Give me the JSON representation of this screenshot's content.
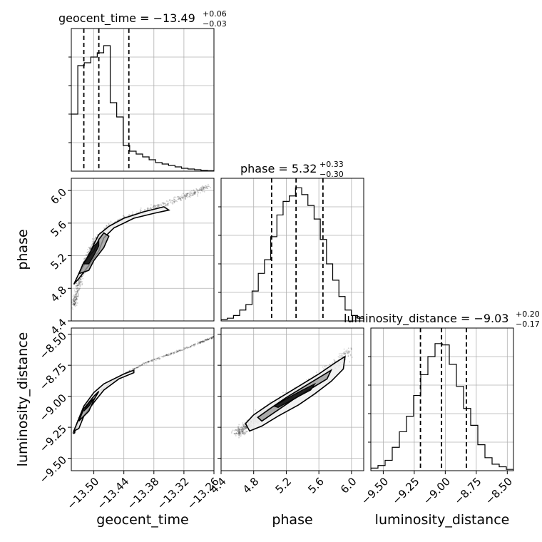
{
  "chart_data": {
    "type": "corner",
    "parameters": [
      "geocent_time",
      "phase",
      "luminosity_distance"
    ],
    "titles": [
      {
        "param": "geocent_time",
        "text": "geocent_time = −13.49",
        "plus": "+0.06",
        "minus": "−0.03"
      },
      {
        "param": "phase",
        "text": "phase = 5.32",
        "plus": "+0.33",
        "minus": "−0.30"
      },
      {
        "param": "luminosity_distance",
        "text": "luminosity_distance = −9.03",
        "plus": "+0.20",
        "minus": "−0.17"
      }
    ],
    "axes": {
      "geocent_time": {
        "range": [
          -13.545,
          -13.26
        ],
        "ticks": [
          -13.5,
          -13.44,
          -13.38,
          -13.32,
          -13.26
        ],
        "tick_labels": [
          "−13.50",
          "−13.44",
          "−13.38",
          "−13.32",
          "−13.26"
        ],
        "label": "geocent_time"
      },
      "phase": {
        "range": [
          4.4,
          6.15
        ],
        "ticks": [
          4.4,
          4.8,
          5.2,
          5.6,
          6.0
        ],
        "tick_labels_x": [
          "4.4",
          "4.8",
          "5.2",
          "5.6",
          "6.0"
        ],
        "tick_labels_y": [
          "4.4",
          "4.8",
          "5.2",
          "5.6",
          "6.0"
        ],
        "label": "phase"
      },
      "luminosity_distance": {
        "range": [
          -9.6,
          -8.45
        ],
        "ticks": [
          -9.5,
          -9.25,
          -9.0,
          -8.75,
          -8.5
        ],
        "tick_labels": [
          "−9.50",
          "−9.25",
          "−9.00",
          "−8.75",
          "−8.50"
        ],
        "label": "luminosity_distance"
      }
    },
    "quantiles": {
      "geocent_time": [
        -13.52,
        -13.49,
        -13.43
      ],
      "phase": [
        5.02,
        5.32,
        5.65
      ],
      "luminosity_distance": [
        -9.2,
        -9.03,
        -8.83
      ]
    },
    "histograms": {
      "geocent_time": {
        "edges_range": [
          -13.545,
          -13.26
        ],
        "counts": [
          0.4,
          0.74,
          0.76,
          0.8,
          0.83,
          0.88,
          0.48,
          0.38,
          0.18,
          0.14,
          0.12,
          0.1,
          0.08,
          0.06,
          0.05,
          0.04,
          0.03,
          0.02,
          0.015,
          0.01,
          0.005,
          0.003
        ],
        "ymax": 1.0
      },
      "phase": {
        "edges_range": [
          4.4,
          6.15
        ],
        "counts": [
          0.01,
          0.02,
          0.04,
          0.08,
          0.12,
          0.22,
          0.35,
          0.45,
          0.62,
          0.78,
          0.88,
          0.92,
          0.98,
          0.93,
          0.85,
          0.75,
          0.6,
          0.42,
          0.3,
          0.18,
          0.08,
          0.04,
          0.02
        ],
        "ymax": 1.05
      },
      "luminosity_distance": {
        "edges_range": [
          -9.6,
          -8.45
        ],
        "counts": [
          0.02,
          0.04,
          0.08,
          0.18,
          0.3,
          0.42,
          0.58,
          0.74,
          0.88,
          0.98,
          0.97,
          0.82,
          0.65,
          0.48,
          0.35,
          0.2,
          0.1,
          0.05,
          0.03,
          0.01
        ],
        "ymax": 1.1
      }
    },
    "pairs": [
      {
        "x": "geocent_time",
        "y": "phase",
        "contour_outer": [
          [
            -13.54,
            4.85
          ],
          [
            -13.53,
            4.98
          ],
          [
            -13.52,
            5.08
          ],
          [
            -13.51,
            5.2
          ],
          [
            -13.5,
            5.34
          ],
          [
            -13.49,
            5.46
          ],
          [
            -13.47,
            5.56
          ],
          [
            -13.44,
            5.66
          ],
          [
            -13.4,
            5.74
          ],
          [
            -13.36,
            5.8
          ],
          [
            -13.35,
            5.76
          ],
          [
            -13.38,
            5.72
          ],
          [
            -13.42,
            5.66
          ],
          [
            -13.46,
            5.54
          ],
          [
            -13.48,
            5.42
          ],
          [
            -13.49,
            5.26
          ],
          [
            -13.51,
            5.08
          ],
          [
            -13.53,
            4.92
          ]
        ],
        "contour_inner": [
          [
            -13.53,
            4.98
          ],
          [
            -13.52,
            5.12
          ],
          [
            -13.5,
            5.26
          ],
          [
            -13.49,
            5.4
          ],
          [
            -13.48,
            5.48
          ],
          [
            -13.47,
            5.44
          ],
          [
            -13.48,
            5.3
          ],
          [
            -13.5,
            5.14
          ],
          [
            -13.51,
            5.02
          ]
        ],
        "contour_core": [
          [
            -13.52,
            5.1
          ],
          [
            -13.51,
            5.22
          ],
          [
            -13.5,
            5.32
          ],
          [
            -13.49,
            5.38
          ],
          [
            -13.49,
            5.32
          ],
          [
            -13.5,
            5.2
          ],
          [
            -13.51,
            5.1
          ]
        ],
        "scatter_path": [
          [
            -13.54,
            4.6
          ],
          [
            -13.53,
            4.85
          ],
          [
            -13.52,
            5.05
          ],
          [
            -13.51,
            5.22
          ],
          [
            -13.5,
            5.35
          ],
          [
            -13.48,
            5.5
          ],
          [
            -13.45,
            5.63
          ],
          [
            -13.41,
            5.73
          ],
          [
            -13.37,
            5.81
          ],
          [
            -13.33,
            5.9
          ],
          [
            -13.3,
            5.97
          ],
          [
            -13.27,
            6.06
          ]
        ],
        "scatter_spread": 0.12
      },
      {
        "x": "geocent_time",
        "y": "luminosity_distance",
        "contour_outer": [
          [
            -13.54,
            -9.28
          ],
          [
            -13.53,
            -9.18
          ],
          [
            -13.52,
            -9.08
          ],
          [
            -13.5,
            -8.97
          ],
          [
            -13.48,
            -8.9
          ],
          [
            -13.46,
            -8.86
          ],
          [
            -13.44,
            -8.82
          ],
          [
            -13.42,
            -8.79
          ],
          [
            -13.42,
            -8.81
          ],
          [
            -13.45,
            -8.86
          ],
          [
            -13.48,
            -8.95
          ],
          [
            -13.5,
            -9.05
          ],
          [
            -13.52,
            -9.16
          ],
          [
            -13.53,
            -9.26
          ]
        ],
        "contour_inner": [
          [
            -13.53,
            -9.2
          ],
          [
            -13.52,
            -9.1
          ],
          [
            -13.5,
            -9.0
          ],
          [
            -13.49,
            -8.96
          ],
          [
            -13.5,
            -9.03
          ],
          [
            -13.51,
            -9.12
          ]
        ],
        "contour_core": [
          [
            -13.52,
            -9.12
          ],
          [
            -13.51,
            -9.05
          ],
          [
            -13.5,
            -9.02
          ],
          [
            -13.51,
            -9.08
          ]
        ],
        "scatter_path": [
          [
            -13.54,
            -9.3
          ],
          [
            -13.53,
            -9.2
          ],
          [
            -13.52,
            -9.1
          ],
          [
            -13.5,
            -9.0
          ],
          [
            -13.47,
            -8.9
          ],
          [
            -13.43,
            -8.8
          ],
          [
            -13.39,
            -8.72
          ],
          [
            -13.34,
            -8.65
          ],
          [
            -13.29,
            -8.57
          ],
          [
            -13.26,
            -8.52
          ]
        ],
        "scatter_spread": 0.04
      },
      {
        "x": "phase",
        "y": "luminosity_distance",
        "contour_outer": [
          [
            4.7,
            -9.22
          ],
          [
            4.8,
            -9.15
          ],
          [
            5.0,
            -9.06
          ],
          [
            5.2,
            -8.98
          ],
          [
            5.4,
            -8.9
          ],
          [
            5.6,
            -8.82
          ],
          [
            5.8,
            -8.73
          ],
          [
            5.92,
            -8.68
          ],
          [
            5.9,
            -8.78
          ],
          [
            5.75,
            -8.88
          ],
          [
            5.55,
            -8.98
          ],
          [
            5.35,
            -9.07
          ],
          [
            5.1,
            -9.16
          ],
          [
            4.9,
            -9.24
          ],
          [
            4.75,
            -9.28
          ]
        ],
        "contour_inner": [
          [
            4.85,
            -9.17
          ],
          [
            5.0,
            -9.1
          ],
          [
            5.2,
            -9.01
          ],
          [
            5.4,
            -8.93
          ],
          [
            5.6,
            -8.85
          ],
          [
            5.75,
            -8.79
          ],
          [
            5.7,
            -8.86
          ],
          [
            5.5,
            -8.94
          ],
          [
            5.3,
            -9.02
          ],
          [
            5.1,
            -9.11
          ],
          [
            4.9,
            -9.2
          ]
        ],
        "contour_core": [
          [
            5.05,
            -9.08
          ],
          [
            5.2,
            -9.02
          ],
          [
            5.4,
            -8.95
          ],
          [
            5.55,
            -8.9
          ],
          [
            5.5,
            -8.95
          ],
          [
            5.3,
            -9.02
          ],
          [
            5.1,
            -9.09
          ]
        ],
        "scatter_path": [
          [
            4.6,
            -9.3
          ],
          [
            4.8,
            -9.2
          ],
          [
            5.0,
            -9.1
          ],
          [
            5.2,
            -9.02
          ],
          [
            5.4,
            -8.94
          ],
          [
            5.6,
            -8.86
          ],
          [
            5.8,
            -8.75
          ],
          [
            6.0,
            -8.62
          ]
        ],
        "scatter_spread": 0.2
      }
    ]
  }
}
